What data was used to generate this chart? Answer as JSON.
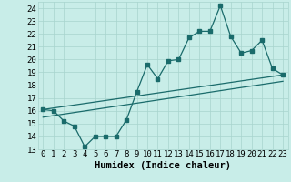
{
  "title": "",
  "xlabel": "Humidex (Indice chaleur)",
  "bg_color": "#c8ede8",
  "grid_color": "#a8d4ce",
  "line_color": "#1a6b6b",
  "xlim": [
    -0.5,
    23.5
  ],
  "ylim": [
    13,
    24.5
  ],
  "yticks": [
    13,
    14,
    15,
    16,
    17,
    18,
    19,
    20,
    21,
    22,
    23,
    24
  ],
  "xticks": [
    0,
    1,
    2,
    3,
    4,
    5,
    6,
    7,
    8,
    9,
    10,
    11,
    12,
    13,
    14,
    15,
    16,
    17,
    18,
    19,
    20,
    21,
    22,
    23
  ],
  "line1_x": [
    0,
    1,
    2,
    3,
    4,
    5,
    6,
    7,
    8,
    9,
    10,
    11,
    12,
    13,
    14,
    15,
    16,
    17,
    18,
    19,
    20,
    21,
    22,
    23
  ],
  "line1_y": [
    16.1,
    16.0,
    15.2,
    14.8,
    13.2,
    14.0,
    14.0,
    14.0,
    15.3,
    17.5,
    19.6,
    18.5,
    19.9,
    20.0,
    21.7,
    22.2,
    22.2,
    24.2,
    21.8,
    20.5,
    20.7,
    21.5,
    19.3,
    18.8
  ],
  "line2_x": [
    0,
    23
  ],
  "line2_y": [
    16.1,
    18.8
  ],
  "line3_x": [
    0,
    23
  ],
  "line3_y": [
    15.5,
    18.3
  ],
  "marker_size": 2.5,
  "line_width": 0.9,
  "font_size": 6.5
}
